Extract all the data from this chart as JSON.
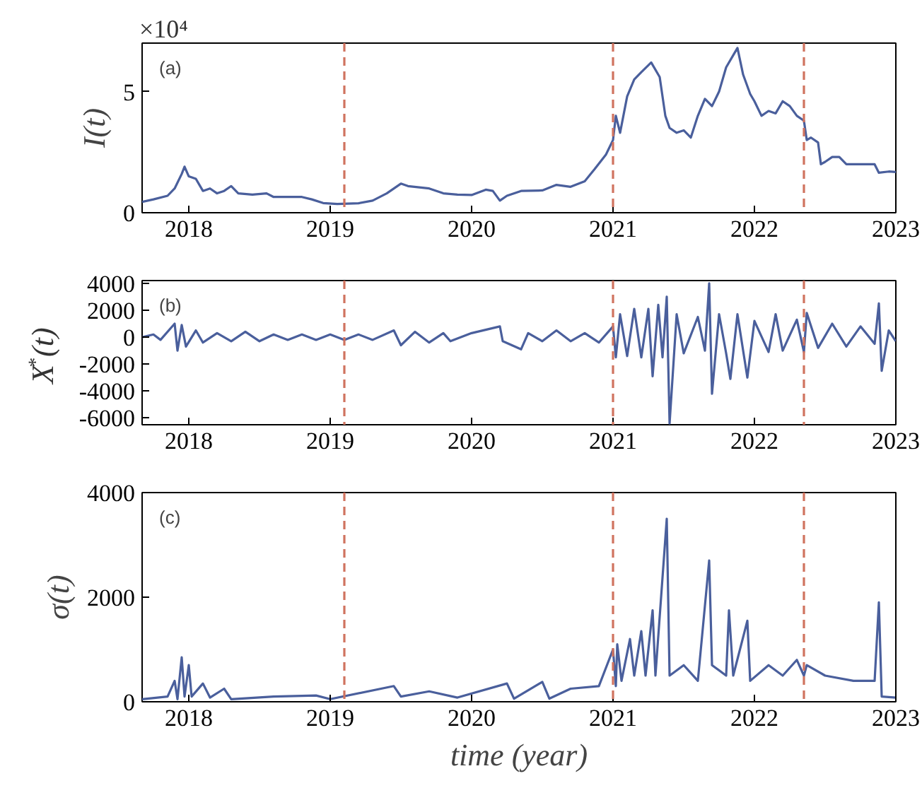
{
  "chart_data": [
    {
      "type": "line",
      "ylabel": "I(t)",
      "annotations": [
        "(a)",
        "×10⁴"
      ],
      "xlim": [
        2017.67,
        2023.0
      ],
      "xticks": [
        2018,
        2019,
        2020,
        2021,
        2022,
        2023
      ],
      "ylim": [
        0,
        7
      ],
      "yticks": [
        0,
        5
      ],
      "x": [
        2017.67,
        2017.75,
        2017.85,
        2017.9,
        2017.95,
        2017.97,
        2018.0,
        2018.05,
        2018.1,
        2018.15,
        2018.2,
        2018.25,
        2018.3,
        2018.35,
        2018.45,
        2018.55,
        2018.6,
        2018.7,
        2018.8,
        2018.87,
        2018.95,
        2019.05,
        2019.2,
        2019.3,
        2019.4,
        2019.5,
        2019.55,
        2019.7,
        2019.8,
        2019.9,
        2020.0,
        2020.1,
        2020.15,
        2020.2,
        2020.25,
        2020.35,
        2020.5,
        2020.6,
        2020.7,
        2020.8,
        2020.87,
        2020.95,
        2021.0,
        2021.02,
        2021.05,
        2021.1,
        2021.15,
        2021.2,
        2021.27,
        2021.33,
        2021.37,
        2021.4,
        2021.45,
        2021.5,
        2021.55,
        2021.6,
        2021.65,
        2021.7,
        2021.75,
        2021.8,
        2021.85,
        2021.88,
        2021.92,
        2021.97,
        2022.0,
        2022.05,
        2022.1,
        2022.15,
        2022.2,
        2022.25,
        2022.3,
        2022.35,
        2022.37,
        2022.4,
        2022.45,
        2022.47,
        2022.5,
        2022.55,
        2022.6,
        2022.65,
        2022.75,
        2022.85,
        2022.88,
        2022.95,
        2023.0
      ],
      "series": [
        {
          "color": "#4a5f9c",
          "values": [
            0.45,
            0.55,
            0.7,
            1.0,
            1.6,
            1.9,
            1.5,
            1.4,
            0.9,
            1.0,
            0.8,
            0.9,
            1.1,
            0.8,
            0.75,
            0.8,
            0.65,
            0.65,
            0.65,
            0.55,
            0.4,
            0.36,
            0.39,
            0.5,
            0.8,
            1.2,
            1.1,
            1.0,
            0.8,
            0.75,
            0.73,
            0.95,
            0.9,
            0.5,
            0.7,
            0.9,
            0.92,
            1.15,
            1.07,
            1.3,
            1.8,
            2.4,
            3.0,
            4.0,
            3.3,
            4.8,
            5.5,
            5.8,
            6.2,
            5.6,
            4.0,
            3.5,
            3.3,
            3.4,
            3.1,
            4.0,
            4.7,
            4.4,
            5.0,
            6.0,
            6.5,
            6.8,
            5.7,
            4.9,
            4.6,
            4.0,
            4.2,
            4.1,
            4.6,
            4.4,
            4.0,
            3.8,
            3.0,
            3.1,
            2.9,
            2.0,
            2.1,
            2.3,
            2.3,
            2.0,
            2.0,
            2.0,
            1.65,
            1.7,
            1.68
          ]
        }
      ],
      "ref_lines": [
        {
          "axis": "x",
          "value": 2019.1,
          "color": "#d0735f",
          "line_style": "dashed"
        },
        {
          "axis": "x",
          "value": 2021.0,
          "color": "#d0735f",
          "line_style": "dashed"
        },
        {
          "axis": "x",
          "value": 2022.35,
          "color": "#d0735f",
          "line_style": "dashed"
        }
      ]
    },
    {
      "type": "line",
      "ylabel": "X$^{*}$(t)",
      "annotations": [
        "(b)"
      ],
      "xlim": [
        2017.67,
        2023.0
      ],
      "xticks": [
        2018,
        2019,
        2020,
        2021,
        2022,
        2023
      ],
      "ylim": [
        -6500,
        4200
      ],
      "yticks": [
        -6000,
        -4000,
        -2000,
        0,
        2000,
        4000
      ],
      "x": [
        2017.67,
        2017.75,
        2017.8,
        2017.9,
        2017.92,
        2017.95,
        2017.98,
        2018.05,
        2018.1,
        2018.2,
        2018.3,
        2018.4,
        2018.5,
        2018.6,
        2018.7,
        2018.8,
        2018.9,
        2019.0,
        2019.1,
        2019.2,
        2019.3,
        2019.45,
        2019.5,
        2019.6,
        2019.7,
        2019.8,
        2019.85,
        2020.0,
        2020.2,
        2020.22,
        2020.35,
        2020.4,
        2020.5,
        2020.6,
        2020.7,
        2020.8,
        2020.9,
        2021.0,
        2021.02,
        2021.05,
        2021.1,
        2021.15,
        2021.2,
        2021.25,
        2021.28,
        2021.32,
        2021.35,
        2021.38,
        2021.4,
        2021.45,
        2021.5,
        2021.6,
        2021.65,
        2021.68,
        2021.7,
        2021.75,
        2021.8,
        2021.83,
        2021.88,
        2021.95,
        2022.0,
        2022.1,
        2022.15,
        2022.2,
        2022.3,
        2022.35,
        2022.37,
        2022.45,
        2022.55,
        2022.65,
        2022.75,
        2022.85,
        2022.88,
        2022.9,
        2022.95,
        2023.0
      ],
      "series": [
        {
          "color": "#4a5f9c",
          "values": [
            0,
            200,
            -200,
            1000,
            -1000,
            900,
            -700,
            500,
            -400,
            300,
            -300,
            400,
            -300,
            200,
            -200,
            200,
            -200,
            200,
            -200,
            200,
            -200,
            500,
            -600,
            400,
            -400,
            300,
            -300,
            300,
            800,
            -300,
            -900,
            300,
            -300,
            500,
            -300,
            300,
            -400,
            800,
            -1500,
            1700,
            -1400,
            2100,
            -1500,
            2100,
            -2900,
            2400,
            -1500,
            3000,
            -6400,
            1700,
            -1200,
            1500,
            -1000,
            4000,
            -4200,
            1700,
            -1200,
            -3100,
            1700,
            -3000,
            1200,
            -1100,
            1700,
            -1000,
            1300,
            -1100,
            1800,
            -800,
            1000,
            -700,
            800,
            -500,
            2500,
            -2500,
            500,
            -300
          ]
        }
      ],
      "ref_lines": [
        {
          "axis": "x",
          "value": 2019.1,
          "color": "#d0735f",
          "line_style": "dashed"
        },
        {
          "axis": "x",
          "value": 2021.0,
          "color": "#d0735f",
          "line_style": "dashed"
        },
        {
          "axis": "x",
          "value": 2022.35,
          "color": "#d0735f",
          "line_style": "dashed"
        }
      ]
    },
    {
      "type": "line",
      "ylabel": "σ(t)",
      "xlabel": "time (year)",
      "annotations": [
        "(c)"
      ],
      "xlim": [
        2017.67,
        2023.0
      ],
      "xticks": [
        2018,
        2019,
        2020,
        2021,
        2022,
        2023
      ],
      "ylim": [
        0,
        4000
      ],
      "yticks": [
        0,
        2000,
        4000
      ],
      "x": [
        2017.67,
        2017.85,
        2017.9,
        2017.92,
        2017.95,
        2017.97,
        2018.0,
        2018.02,
        2018.1,
        2018.15,
        2018.25,
        2018.3,
        2018.6,
        2018.9,
        2019.0,
        2019.45,
        2019.5,
        2019.7,
        2019.9,
        2020.25,
        2020.3,
        2020.5,
        2020.55,
        2020.7,
        2020.9,
        2021.0,
        2021.02,
        2021.03,
        2021.06,
        2021.12,
        2021.15,
        2021.2,
        2021.23,
        2021.28,
        2021.3,
        2021.38,
        2021.4,
        2021.5,
        2021.6,
        2021.68,
        2021.7,
        2021.8,
        2021.82,
        2021.85,
        2021.95,
        2021.97,
        2022.1,
        2022.2,
        2022.3,
        2022.35,
        2022.37,
        2022.5,
        2022.7,
        2022.85,
        2022.88,
        2022.9,
        2023.0
      ],
      "series": [
        {
          "color": "#4a5f9c",
          "values": [
            50,
            100,
            400,
            50,
            850,
            100,
            700,
            100,
            350,
            80,
            250,
            50,
            100,
            120,
            50,
            300,
            100,
            200,
            80,
            350,
            60,
            380,
            60,
            250,
            300,
            1000,
            300,
            1100,
            400,
            1200,
            500,
            1350,
            500,
            1750,
            500,
            3500,
            500,
            700,
            400,
            2700,
            700,
            500,
            1750,
            500,
            1550,
            400,
            700,
            500,
            800,
            500,
            700,
            500,
            400,
            400,
            1900,
            100,
            80
          ]
        }
      ],
      "ref_lines": [
        {
          "axis": "x",
          "value": 2019.1,
          "color": "#d0735f",
          "line_style": "dashed"
        },
        {
          "axis": "x",
          "value": 2021.0,
          "color": "#d0735f",
          "line_style": "dashed"
        },
        {
          "axis": "x",
          "value": 2022.35,
          "color": "#d0735f",
          "line_style": "dashed"
        }
      ]
    }
  ]
}
